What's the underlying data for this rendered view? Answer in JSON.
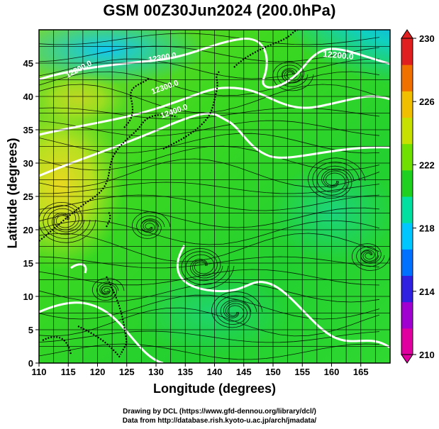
{
  "title": "GSM 00Z30Jun2024 (200.0hPa)",
  "x_axis": {
    "label": "Longitude (degrees)",
    "ticks": [
      "110",
      "115",
      "120",
      "125",
      "130",
      "135",
      "140",
      "145",
      "150",
      "155",
      "160",
      "165"
    ],
    "range": [
      110,
      170
    ]
  },
  "y_axis": {
    "label": "Latitude (degrees)",
    "ticks": [
      "0",
      "5",
      "10",
      "15",
      "20",
      "25",
      "30",
      "35",
      "40",
      "45"
    ],
    "range": [
      0,
      50
    ]
  },
  "colorbar": {
    "ticks": [
      "210",
      "214",
      "218",
      "222",
      "226",
      "230"
    ],
    "range": [
      210,
      230
    ],
    "colors": [
      "#e000a0",
      "#a000d0",
      "#3020e0",
      "#0070ff",
      "#00c8ff",
      "#00e0a0",
      "#20d020",
      "#70e000",
      "#c8e000",
      "#f0c000",
      "#f07000",
      "#e02020"
    ]
  },
  "contour_labels": [
    {
      "text": "12200.0"
    },
    {
      "text": "12300.0"
    },
    {
      "text": "12400.0"
    },
    {
      "text": "12300.0"
    },
    {
      "text": "12200.0"
    }
  ],
  "credits": {
    "line1": "Drawing by DCL (https://www.gfd-dennou.org/library/dcl/)",
    "line2": "Data from http://database.rish.kyoto-u.ac.jp/arch/jmadata/"
  }
}
